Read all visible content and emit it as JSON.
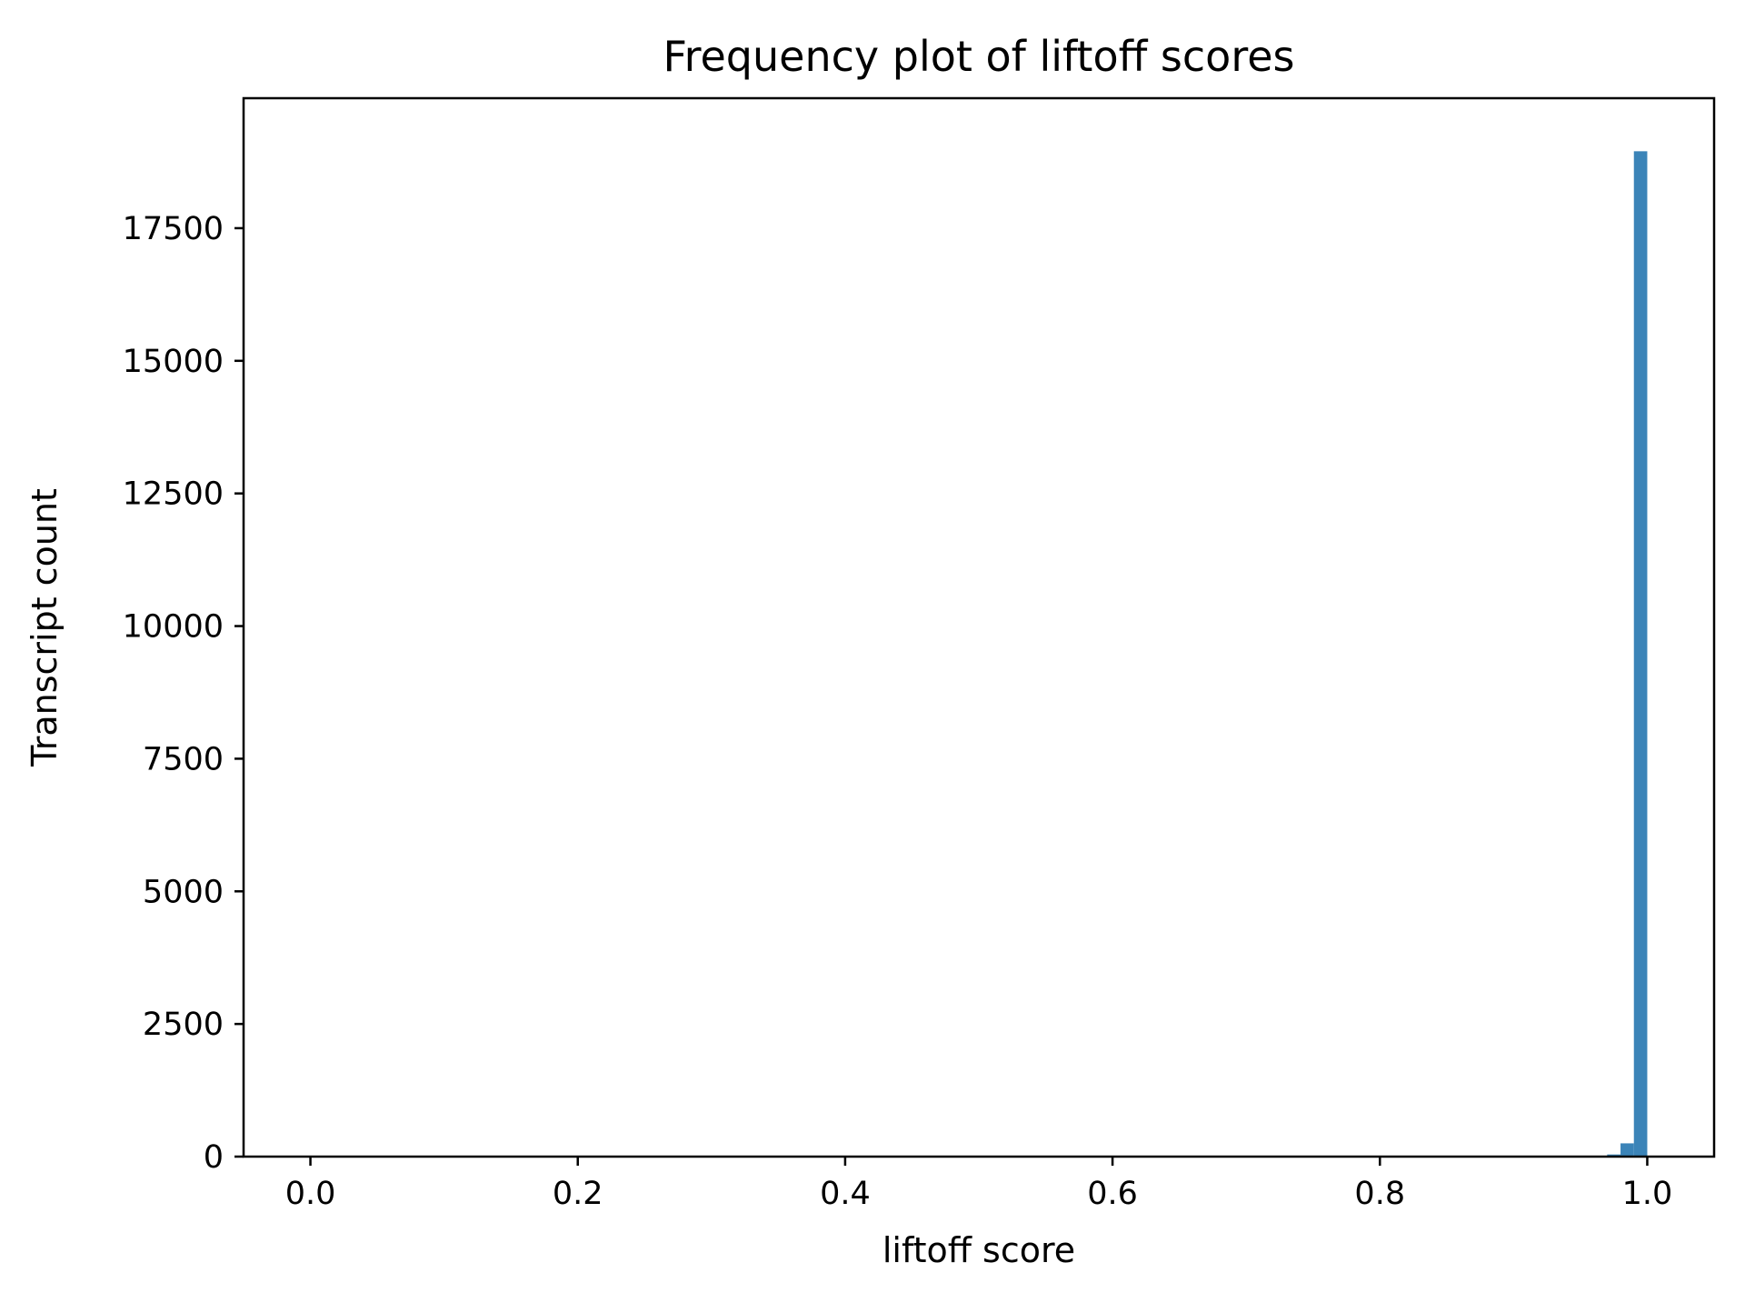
{
  "chart_data": {
    "type": "bar",
    "title": "Frequency plot of liftoff scores",
    "xlabel": "liftoff score",
    "ylabel": "Transcript count",
    "xlim": [
      -0.05,
      1.05
    ],
    "ylim": [
      0,
      19950
    ],
    "x_ticks": [
      0.0,
      0.2,
      0.4,
      0.6,
      0.8,
      1.0
    ],
    "x_tick_labels": [
      "0.0",
      "0.2",
      "0.4",
      "0.6",
      "0.8",
      "1.0"
    ],
    "y_ticks": [
      0,
      2500,
      5000,
      7500,
      10000,
      12500,
      15000,
      17500
    ],
    "y_tick_labels": [
      "0",
      "2500",
      "5000",
      "7500",
      "10000",
      "12500",
      "15000",
      "17500"
    ],
    "bins": [
      {
        "x0": 0.97,
        "x1": 0.98,
        "count": 40
      },
      {
        "x0": 0.98,
        "x1": 0.99,
        "count": 250
      },
      {
        "x0": 0.99,
        "x1": 1.0,
        "count": 18950
      }
    ],
    "bar_color": "#3b84b8",
    "grid": false,
    "legend": "none"
  }
}
